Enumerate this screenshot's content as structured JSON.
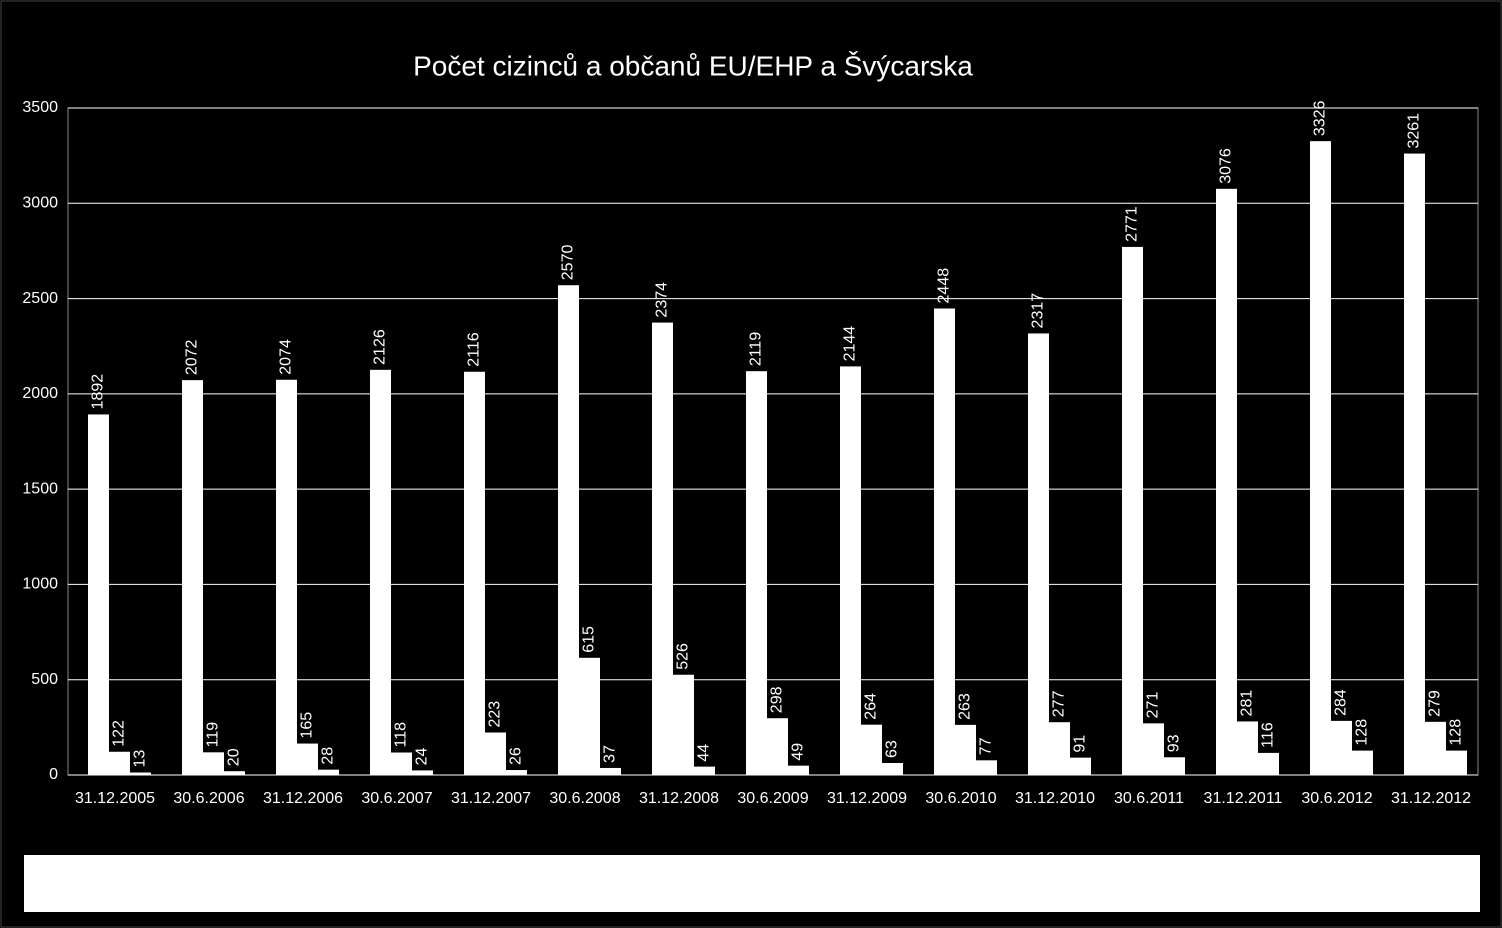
{
  "chart_data": {
    "type": "bar",
    "title": "Počet cizinců a občanů EU/EHP a Švýcarska",
    "categories": [
      "31.12.2005",
      "30.6.2006",
      "31.12.2006",
      "30.6.2007",
      "31.12.2007",
      "30.6.2008",
      "31.12.2008",
      "30.6.2009",
      "31.12.2009",
      "30.6.2010",
      "31.12.2010",
      "30.6.2011",
      "31.12.2011",
      "30.6.2012",
      "31.12.2012"
    ],
    "series": [
      {
        "color": "#ffffff",
        "values": [
          1892,
          2072,
          2074,
          2126,
          2116,
          2570,
          2374,
          2119,
          2144,
          2448,
          2317,
          2771,
          3076,
          3326,
          3261
        ]
      },
      {
        "color": "#ffffff",
        "values": [
          122,
          119,
          165,
          118,
          223,
          615,
          526,
          298,
          264,
          263,
          277,
          271,
          281,
          284,
          279
        ]
      },
      {
        "color": "#ffffff",
        "values": [
          13,
          20,
          28,
          24,
          26,
          37,
          44,
          49,
          63,
          77,
          91,
          93,
          116,
          128,
          128
        ]
      }
    ],
    "ylim": [
      0,
      3500
    ],
    "yticks": [
      0,
      500,
      1000,
      1500,
      2000,
      2500,
      3000,
      3500
    ],
    "grid": true
  }
}
